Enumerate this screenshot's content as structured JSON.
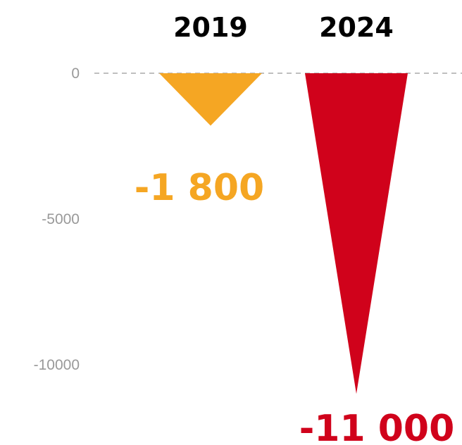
{
  "chart_data": {
    "type": "bar",
    "title": "",
    "xlabel": "",
    "ylabel": "",
    "categories": [
      "2019",
      "2024"
    ],
    "values": [
      -1800,
      -11000
    ],
    "value_labels": [
      "-1 800",
      "-11 000"
    ],
    "colors": [
      "#f5a623",
      "#d0021b"
    ],
    "yticks": [
      0,
      -5000,
      -10000
    ],
    "ytick_labels": [
      "0",
      "-5000",
      "-10000"
    ],
    "ylim": [
      -11000,
      0
    ],
    "grid": false,
    "legend": "none",
    "bar_shape": "inverted-triangle"
  }
}
